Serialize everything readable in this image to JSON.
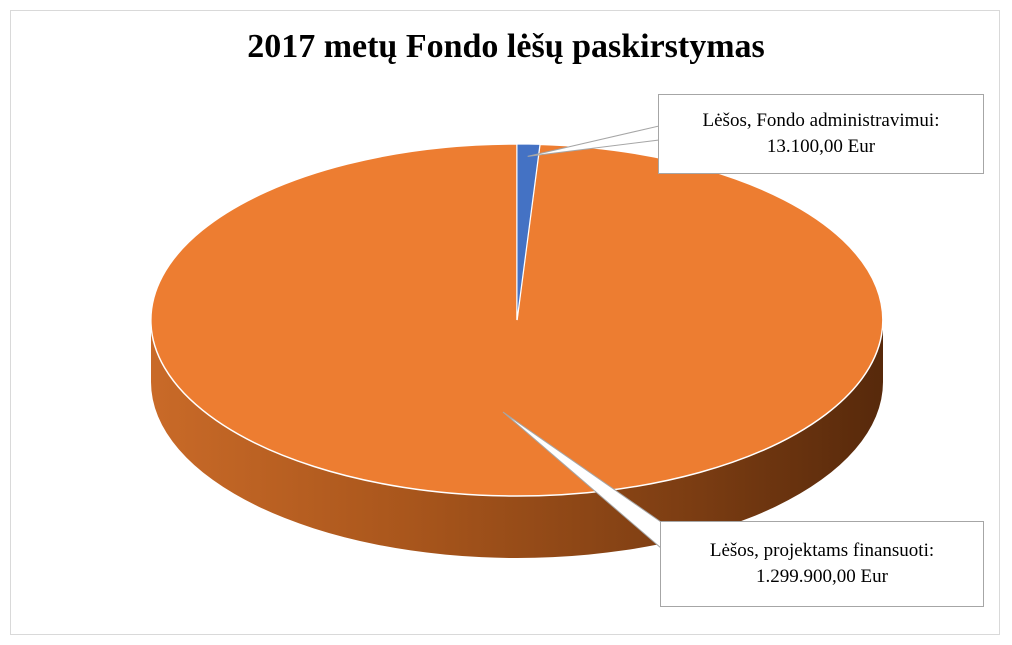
{
  "chart_data": {
    "type": "pie",
    "title": "2017 metų Fondo lėšų paskirstymas",
    "slices": [
      {
        "label": "Lėšos, Fondo administravimui:",
        "value_label": "13.100,00  Eur",
        "value": 13100.0,
        "color": "#4472c4"
      },
      {
        "label": "Lėšos, projektams  finansuoti:",
        "value_label": "1.299.900,00  Eur",
        "value": 1299900.0,
        "color": "#ed7d31"
      }
    ],
    "legend": "none",
    "style": "3d"
  }
}
